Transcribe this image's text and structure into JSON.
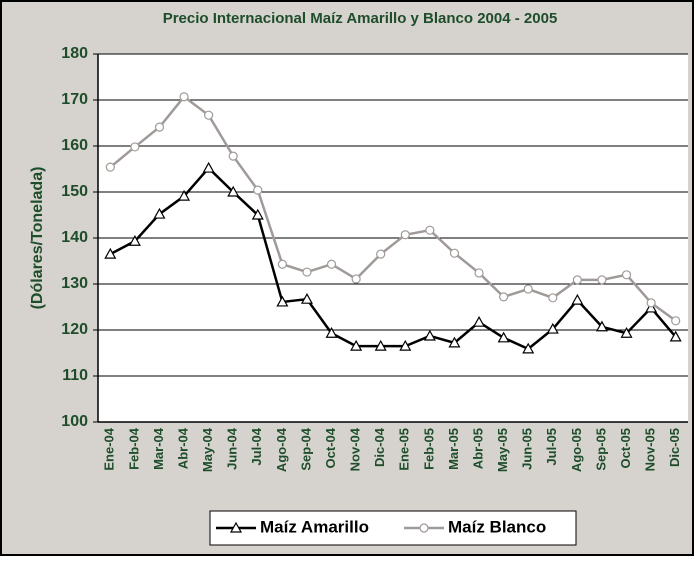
{
  "chart_data": {
    "type": "line",
    "title": "Precio Internacional Maíz Amarillo y Blanco 2004 - 2005",
    "y_label": "(Dólares/Tonelada)",
    "categories": [
      "Ene-04",
      "Feb-04",
      "Mar-04",
      "Abr-04",
      "May-04",
      "Jun-04",
      "Jul-04",
      "Ago-04",
      "Sep-04",
      "Oct-04",
      "Nov-04",
      "Dic-04",
      "Ene-05",
      "Feb-05",
      "Mar-05",
      "Abr-05",
      "May-05",
      "Jun-05",
      "Jul-05",
      "Ago-05",
      "Sep-05",
      "Oct-05",
      "Nov-05",
      "Dic-05"
    ],
    "series": [
      {
        "name": "Maíz Amarillo",
        "color": "#000000",
        "marker": "triangle",
        "values": [
          136.5,
          139.3,
          145.2,
          149.1,
          155.2,
          150,
          145,
          126.1,
          126.7,
          119.3,
          116.5,
          116.5,
          116.5,
          118.7,
          117.2,
          121.7,
          118.3,
          115.9,
          120.2,
          126.5,
          120.7,
          119.3,
          124.8,
          118.5
        ]
      },
      {
        "name": "Maíz Blanco",
        "color": "#a09a98",
        "marker": "circle",
        "values": [
          155.4,
          159.8,
          164.1,
          170.7,
          166.7,
          157.8,
          150.4,
          134.3,
          132.6,
          134.3,
          131.1,
          136.5,
          140.7,
          141.7,
          136.7,
          132.4,
          127.2,
          128.9,
          127,
          130.9,
          130.9,
          132,
          125.9,
          122
        ]
      }
    ],
    "ylim": [
      100,
      180
    ],
    "yticks": [
      100,
      110,
      120,
      130,
      140,
      150,
      160,
      170,
      180
    ],
    "grid": true,
    "legend": "bottom"
  }
}
